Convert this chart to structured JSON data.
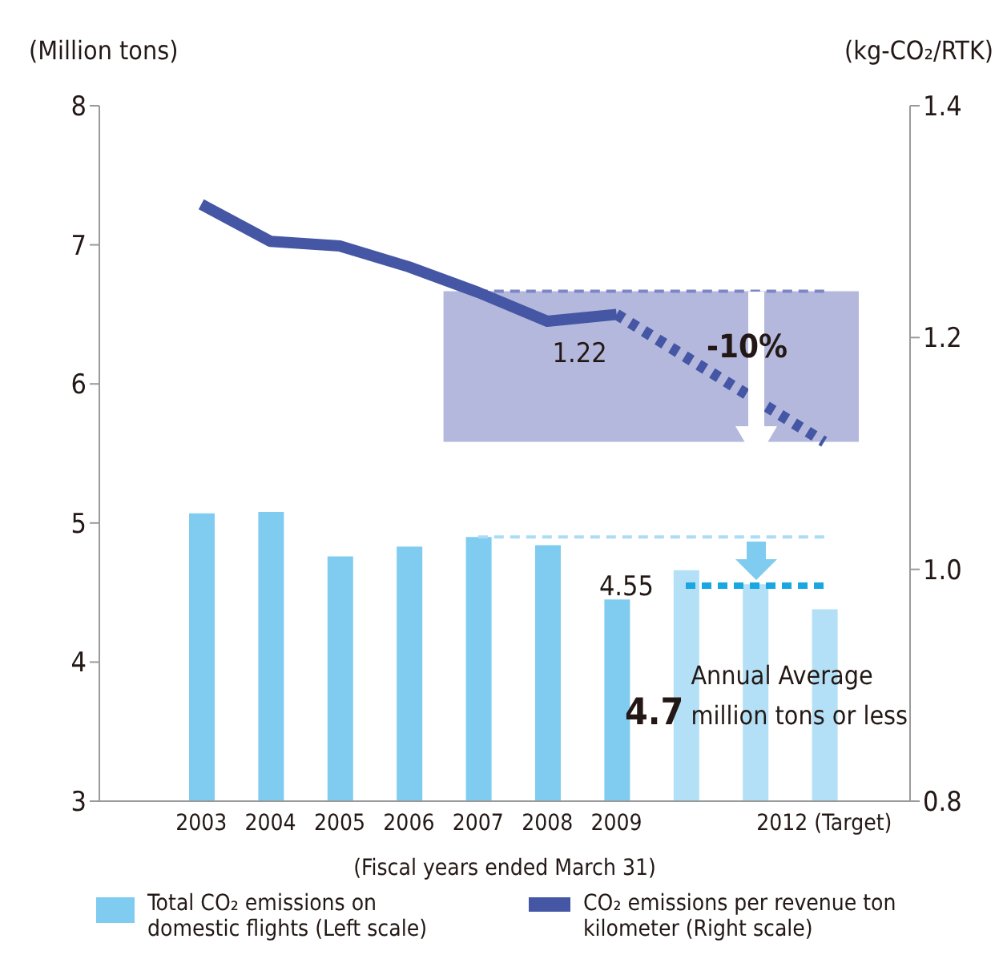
{
  "chart_data": {
    "type": "bar",
    "xlabel": "(Fiscal years ended March 31)",
    "ylabel": "(Million tons)",
    "y2label": "(kg-CO₂/RTK)",
    "categories": [
      "2003",
      "2004",
      "2005",
      "2006",
      "2007",
      "2008",
      "2009",
      null,
      null,
      "2012 (Target)"
    ],
    "series": [
      {
        "name": "Total CO₂ emissions on domestic flights (Left scale)",
        "color": "#7fccf0",
        "colors": [
          "#7fccf0",
          "#7fccf0",
          "#7fccf0",
          "#7fccf0",
          "#7fccf0",
          "#7fccf0",
          "#7fccf0",
          "#b3e0f6",
          "#b3e0f6",
          "#b3e0f6"
        ],
        "values": [
          5.07,
          5.08,
          4.76,
          4.83,
          4.9,
          4.84,
          4.45,
          4.66,
          4.56,
          4.38
        ]
      },
      {
        "name": "CO₂ emissions per revenue ton kilometer (Right scale)",
        "type": "line",
        "axis": "y2",
        "color": "#4456a4",
        "line_style": "solid",
        "values": [
          1.315,
          1.283,
          1.279,
          1.261,
          1.239,
          1.214,
          1.22,
          null,
          null,
          null
        ],
        "value_labels": [
          null,
          null,
          null,
          null,
          null,
          null,
          "1.22",
          null,
          null,
          null
        ]
      },
      {
        "type": "line",
        "axis": "y2",
        "color": "#4456a4",
        "line_style": "dotted",
        "values": [
          null,
          null,
          null,
          null,
          null,
          null,
          1.22,
          null,
          null,
          1.11
        ]
      }
    ],
    "ylim": [
      3,
      8
    ],
    "yticks": [
      3,
      4,
      5,
      6,
      7,
      8
    ],
    "y2lim": [
      0.8,
      1.4
    ],
    "y2ticks": [
      {
        "value": 0.8,
        "label": "0.8"
      },
      {
        "value": 1.0,
        "label": "1.0"
      },
      1.2,
      1.4
    ],
    "bands": [
      {
        "axis": "y2",
        "from": 1.11,
        "to": 1.24,
        "label": "-10%",
        "color": "#b4b8dc"
      }
    ],
    "ref_lines": [
      {
        "axis": "y2",
        "value": 1.24,
        "color": "#7d86c4",
        "line_style": "dashed"
      },
      {
        "axis": "y",
        "value": 4.9,
        "color": "#a9dcf5",
        "line_style": "dashed"
      },
      {
        "axis": "y",
        "value": 4.55,
        "label": "4.55",
        "color": "#1aa6e0",
        "line_style": "dashed"
      }
    ],
    "annotations": [
      "Annual Average",
      "4.7 million tons or less"
    ],
    "legend": "bottom",
    "grid": false
  }
}
